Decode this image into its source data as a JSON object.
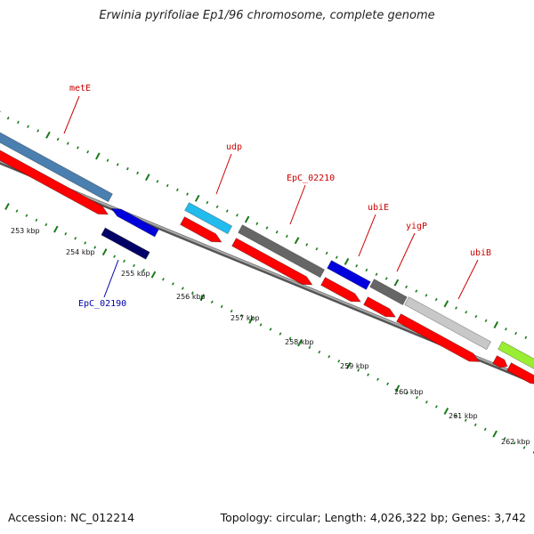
{
  "title": "Erwinia pyrifoliae Ep1/96 chromosome, complete genome",
  "footer": {
    "accession": "Accession: NC_012214",
    "summary": "Topology: circular; Length: 4,026,322 bp; Genes: 3,742"
  },
  "ticks": [
    "253 kbp",
    "254 kbp",
    "255 kbp",
    "256 kbp",
    "257 kbp",
    "258 kbp",
    "259 kbp",
    "260 kbp",
    "261 kbp",
    "262 kbp"
  ],
  "gene_labels": [
    {
      "name": "metE",
      "color": "#cc0000"
    },
    {
      "name": "udp",
      "color": "#cc0000"
    },
    {
      "name": "EpC_02210",
      "color": "#cc0000"
    },
    {
      "name": "ubiE",
      "color": "#cc0000"
    },
    {
      "name": "yigP",
      "color": "#cc0000"
    },
    {
      "name": "ubiB",
      "color": "#cc0000"
    },
    {
      "name": "EpC_02190",
      "color": "#0000aa"
    }
  ],
  "feature_colors": {
    "cds": "#ff0000",
    "steelblue": "#4a7fb0",
    "lightblue": "#22bbee",
    "blue": "#0000dd",
    "navy": "#000066",
    "darkgray": "#666666",
    "lightgray": "#c8c8c8",
    "lime": "#99ee33",
    "tick": "#1a7a1a",
    "backbone": "#888888"
  }
}
